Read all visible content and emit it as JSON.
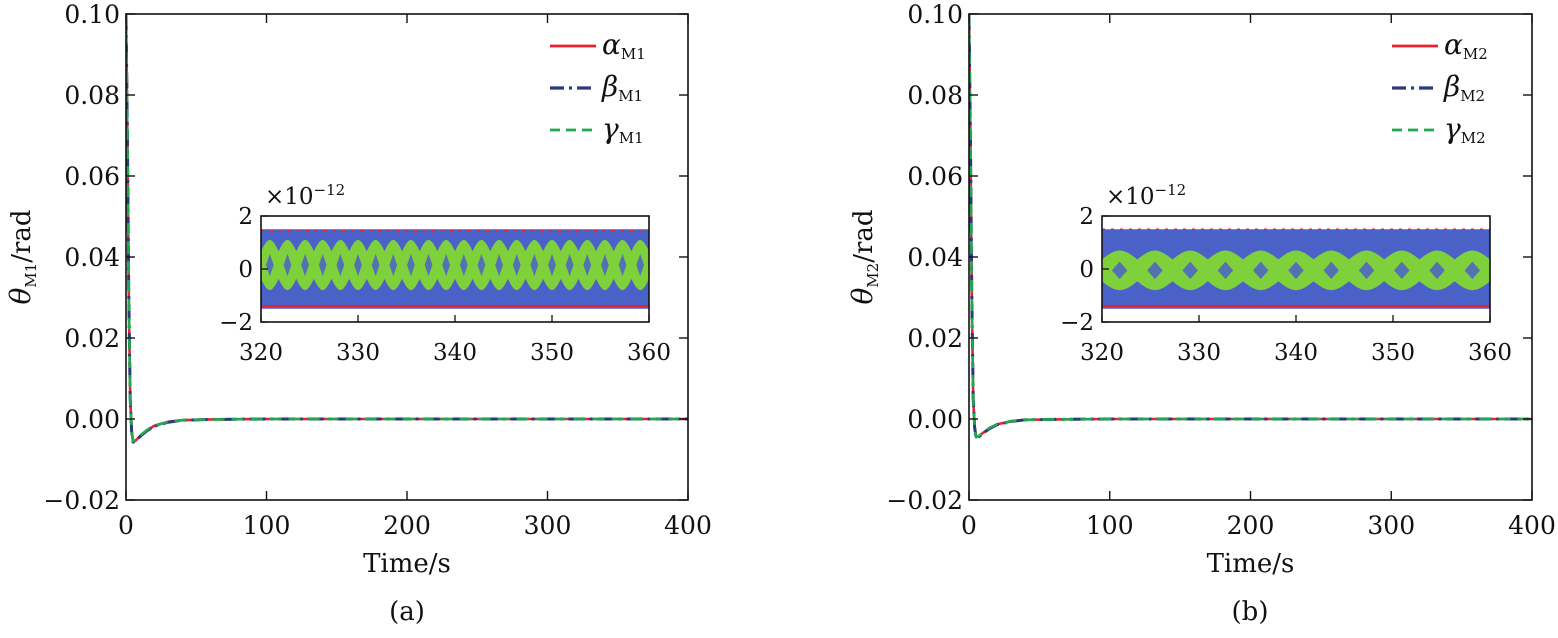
{
  "colors": {
    "alpha": "#e8232d",
    "beta": "#2b3a78",
    "gamma": "#1fa84f",
    "inset_fill_outer": "#4a62c8",
    "inset_fill_inner": "#7fd13b"
  },
  "chart_data": [
    {
      "type": "line",
      "caption": "(a)",
      "xlabel": "Time/s",
      "ylabel_symbol": "θ",
      "ylabel_sub": "M1",
      "ylabel_unit": "/rad",
      "xlim": [
        0,
        400
      ],
      "ylim": [
        -0.02,
        0.1
      ],
      "xticks": [
        "0",
        "100",
        "200",
        "300",
        "400"
      ],
      "yticks": [
        "−0.02",
        "0.00",
        "0.02",
        "0.04",
        "0.06",
        "0.08",
        "0.10"
      ],
      "grid": false,
      "legend_position": "top-right",
      "series": [
        {
          "name": "α",
          "sub": "M1",
          "style": "solid",
          "color": "#e8232d",
          "points": [
            [
              0,
              0.1
            ],
            [
              1,
              0.07
            ],
            [
              2,
              0.03
            ],
            [
              3,
              0.005
            ],
            [
              4,
              -0.003
            ],
            [
              5,
              -0.0055
            ],
            [
              7,
              -0.0053
            ],
            [
              10,
              -0.0042
            ],
            [
              15,
              -0.0028
            ],
            [
              20,
              -0.0017
            ],
            [
              30,
              -0.0007
            ],
            [
              40,
              -0.0003
            ],
            [
              60,
              -0.0001
            ],
            [
              100,
              0
            ],
            [
              400,
              0
            ]
          ]
        },
        {
          "name": "β",
          "sub": "M1",
          "style": "dashdot",
          "color": "#2b3a78",
          "points": [
            [
              0,
              0.1
            ],
            [
              1,
              0.07
            ],
            [
              2,
              0.03
            ],
            [
              3,
              0.005
            ],
            [
              4,
              -0.003
            ],
            [
              5,
              -0.0057
            ],
            [
              7,
              -0.0054
            ],
            [
              10,
              -0.0043
            ],
            [
              15,
              -0.0029
            ],
            [
              20,
              -0.0018
            ],
            [
              30,
              -0.0008
            ],
            [
              40,
              -0.0003
            ],
            [
              60,
              -0.0001
            ],
            [
              100,
              0
            ],
            [
              400,
              0
            ]
          ]
        },
        {
          "name": "γ",
          "sub": "M1",
          "style": "dashed",
          "color": "#1fa84f",
          "points": [
            [
              0,
              0.1
            ],
            [
              1,
              0.07
            ],
            [
              2,
              0.03
            ],
            [
              3,
              0.005
            ],
            [
              4,
              -0.003
            ],
            [
              5,
              -0.0055
            ],
            [
              7,
              -0.0052
            ],
            [
              10,
              -0.0041
            ],
            [
              15,
              -0.0027
            ],
            [
              20,
              -0.0016
            ],
            [
              30,
              -0.0007
            ],
            [
              40,
              -0.0003
            ],
            [
              60,
              -0.0001
            ],
            [
              100,
              0
            ],
            [
              400,
              0
            ]
          ]
        }
      ],
      "inset": {
        "xlim": [
          320,
          360
        ],
        "ylim": [
          -2,
          2
        ],
        "exponent": "×10",
        "exponent_power": "−12",
        "xticks": [
          "320",
          "330",
          "340",
          "350",
          "360"
        ],
        "yticks": [
          "2",
          "0",
          "−2"
        ],
        "outer_band": [
          -1.5,
          1.5
        ],
        "inner_band": [
          -0.8,
          1.1
        ],
        "inner_band_start": [
          -1.1,
          1.1
        ],
        "red_envelope": [
          -1.4,
          1.45
        ],
        "oscillation_cycles": 22
      }
    },
    {
      "type": "line",
      "caption": "(b)",
      "xlabel": "Time/s",
      "ylabel_symbol": "θ",
      "ylabel_sub": "M2",
      "ylabel_unit": "/rad",
      "xlim": [
        0,
        400
      ],
      "ylim": [
        -0.02,
        0.1
      ],
      "xticks": [
        "0",
        "100",
        "200",
        "300",
        "400"
      ],
      "yticks": [
        "−0.02",
        "0.00",
        "0.02",
        "0.04",
        "0.06",
        "0.08",
        "0.10"
      ],
      "grid": false,
      "legend_position": "top-right",
      "series": [
        {
          "name": "α",
          "sub": "M2",
          "style": "solid",
          "color": "#e8232d",
          "points": [
            [
              0,
              0.1
            ],
            [
              1,
              0.07
            ],
            [
              2,
              0.03
            ],
            [
              3,
              0.005
            ],
            [
              4,
              -0.002
            ],
            [
              5,
              -0.0045
            ],
            [
              7,
              -0.0043
            ],
            [
              10,
              -0.0034
            ],
            [
              15,
              -0.0022
            ],
            [
              20,
              -0.0013
            ],
            [
              30,
              -0.0006
            ],
            [
              40,
              -0.0002
            ],
            [
              60,
              -0.0001
            ],
            [
              100,
              0
            ],
            [
              400,
              0
            ]
          ]
        },
        {
          "name": "β",
          "sub": "M2",
          "style": "dashdot",
          "color": "#2b3a78",
          "points": [
            [
              0,
              0.1
            ],
            [
              1,
              0.07
            ],
            [
              2,
              0.03
            ],
            [
              3,
              0.005
            ],
            [
              4,
              -0.002
            ],
            [
              5,
              -0.0047
            ],
            [
              7,
              -0.0044
            ],
            [
              10,
              -0.0035
            ],
            [
              15,
              -0.0023
            ],
            [
              20,
              -0.0014
            ],
            [
              30,
              -0.0006
            ],
            [
              40,
              -0.0002
            ],
            [
              60,
              -0.0001
            ],
            [
              100,
              0
            ],
            [
              400,
              0
            ]
          ]
        },
        {
          "name": "γ",
          "sub": "M2",
          "style": "dashed",
          "color": "#1fa84f",
          "points": [
            [
              0,
              0.1
            ],
            [
              1,
              0.07
            ],
            [
              2,
              0.03
            ],
            [
              3,
              0.005
            ],
            [
              4,
              -0.002
            ],
            [
              5,
              -0.0045
            ],
            [
              7,
              -0.0042
            ],
            [
              10,
              -0.0033
            ],
            [
              15,
              -0.0021
            ],
            [
              20,
              -0.0013
            ],
            [
              30,
              -0.0005
            ],
            [
              40,
              -0.0002
            ],
            [
              60,
              -0.0001
            ],
            [
              100,
              0
            ],
            [
              400,
              0
            ]
          ]
        }
      ],
      "inset": {
        "xlim": [
          320,
          360
        ],
        "ylim": [
          -2,
          2
        ],
        "exponent": "×10",
        "exponent_power": "−12",
        "xticks": [
          "320",
          "330",
          "340",
          "350",
          "360"
        ],
        "yticks": [
          "2",
          "0",
          "−2"
        ],
        "outer_band": [
          -1.5,
          1.5
        ],
        "inner_band": [
          -0.8,
          0.7
        ],
        "inner_band_start": [
          -0.8,
          0.7
        ],
        "red_envelope": [
          -1.4,
          1.5
        ],
        "oscillation_cycles": 11
      }
    }
  ]
}
